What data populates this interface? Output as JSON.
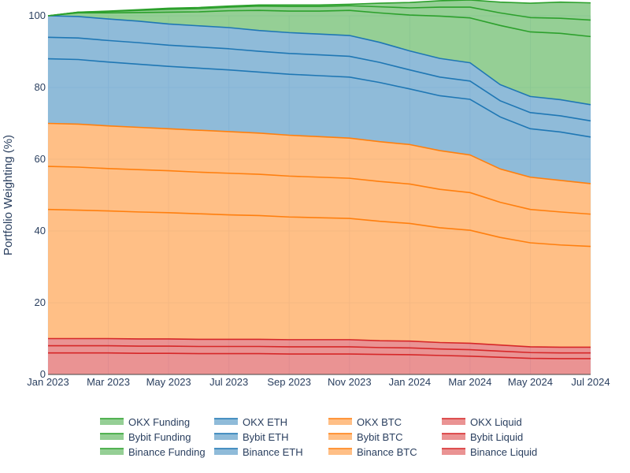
{
  "chart_data": {
    "type": "area",
    "stacked": true,
    "ylabel": "Portfolio Weighting (%)",
    "xlabel": "",
    "ylim": [
      0,
      100
    ],
    "y_ticks": [
      0,
      20,
      40,
      60,
      80,
      100
    ],
    "x_ticks": [
      "Jan 2023",
      "Mar 2023",
      "May 2023",
      "Jul 2023",
      "Sep 2023",
      "Nov 2023",
      "Jan 2024",
      "Mar 2024",
      "May 2024",
      "Jul 2024"
    ],
    "x": [
      "2023-01",
      "2023-02",
      "2023-03",
      "2023-04",
      "2023-05",
      "2023-06",
      "2023-07",
      "2023-08",
      "2023-09",
      "2023-10",
      "2023-11",
      "2023-12",
      "2024-01",
      "2024-02",
      "2024-03",
      "2024-04",
      "2024-05",
      "2024-06",
      "2024-07"
    ],
    "grid": true,
    "legend_position": "bottom",
    "series": [
      {
        "name": "Binance Liquid",
        "color": "#d62728",
        "values": [
          6.0,
          6.0,
          6.0,
          5.9,
          5.9,
          5.8,
          5.8,
          5.8,
          5.7,
          5.7,
          5.7,
          5.6,
          5.5,
          5.3,
          5.1,
          4.8,
          4.5,
          4.4,
          4.4
        ]
      },
      {
        "name": "Bybit Liquid",
        "color": "#d62728",
        "values": [
          2.0,
          2.0,
          2.0,
          2.0,
          2.0,
          2.0,
          2.0,
          2.0,
          2.0,
          2.0,
          2.0,
          1.9,
          1.9,
          1.8,
          1.8,
          1.7,
          1.6,
          1.6,
          1.6
        ]
      },
      {
        "name": "OKX Liquid",
        "color": "#d62728",
        "values": [
          2.0,
          2.0,
          2.0,
          2.0,
          2.0,
          2.0,
          2.0,
          2.0,
          2.0,
          2.0,
          2.0,
          1.9,
          1.9,
          1.8,
          1.8,
          1.7,
          1.6,
          1.6,
          1.6
        ]
      },
      {
        "name": "Binance BTC",
        "color": "#ff7f0e",
        "values": [
          36.0,
          35.8,
          35.6,
          35.4,
          35.2,
          35.0,
          34.7,
          34.5,
          34.2,
          34.0,
          33.8,
          33.3,
          32.8,
          32.0,
          31.5,
          30.0,
          29.0,
          28.5,
          28.1
        ]
      },
      {
        "name": "Bybit BTC",
        "color": "#ff7f0e",
        "values": [
          12.0,
          12.0,
          11.8,
          11.8,
          11.7,
          11.6,
          11.6,
          11.5,
          11.4,
          11.3,
          11.2,
          11.1,
          11.0,
          10.7,
          10.5,
          9.8,
          9.3,
          9.2,
          9.0
        ]
      },
      {
        "name": "OKX BTC",
        "color": "#ff7f0e",
        "values": [
          12.0,
          12.0,
          11.9,
          11.8,
          11.7,
          11.7,
          11.6,
          11.5,
          11.4,
          11.3,
          11.2,
          11.1,
          11.0,
          10.8,
          10.5,
          9.3,
          9.0,
          8.8,
          8.5
        ]
      },
      {
        "name": "Binance ETH",
        "color": "#1f77b4",
        "values": [
          18.0,
          18.0,
          17.8,
          17.6,
          17.4,
          17.3,
          17.2,
          17.0,
          17.0,
          17.0,
          17.0,
          16.5,
          15.5,
          15.3,
          15.5,
          14.5,
          13.5,
          13.5,
          13.0
        ]
      },
      {
        "name": "Bybit ETH",
        "color": "#1f77b4",
        "values": [
          6.0,
          6.0,
          6.0,
          6.0,
          5.9,
          5.9,
          5.9,
          5.8,
          5.8,
          5.8,
          5.8,
          5.6,
          5.3,
          5.2,
          5.1,
          4.5,
          4.5,
          4.5,
          4.5
        ]
      },
      {
        "name": "OKX ETH",
        "color": "#1f77b4",
        "values": [
          6.0,
          6.0,
          6.0,
          6.0,
          5.9,
          5.9,
          5.9,
          5.8,
          5.8,
          5.8,
          5.8,
          5.6,
          5.3,
          5.2,
          5.1,
          4.5,
          4.5,
          4.5,
          4.5
        ]
      },
      {
        "name": "Binance Funding",
        "color": "#2ca02c",
        "values": [
          0.0,
          1.0,
          1.7,
          2.4,
          3.3,
          3.9,
          4.7,
          5.6,
          6.0,
          6.4,
          7.0,
          8.2,
          10.0,
          11.8,
          12.5,
          16.5,
          18.0,
          18.5,
          19.0
        ]
      },
      {
        "name": "Bybit Funding",
        "color": "#2ca02c",
        "values": [
          0.0,
          0.2,
          0.4,
          0.6,
          0.8,
          0.9,
          1.0,
          1.2,
          1.3,
          1.3,
          1.3,
          1.7,
          2.0,
          2.5,
          3.0,
          3.5,
          4.0,
          4.2,
          4.6
        ]
      },
      {
        "name": "OKX Funding",
        "color": "#2ca02c",
        "values": [
          0.0,
          0.0,
          0.1,
          0.2,
          0.3,
          0.3,
          0.3,
          0.3,
          0.4,
          0.4,
          0.4,
          1.0,
          1.5,
          1.8,
          2.0,
          3.0,
          4.0,
          4.5,
          4.8
        ]
      }
    ]
  },
  "legend": [
    {
      "label": "OKX Funding",
      "color": "#2ca02c"
    },
    {
      "label": "OKX ETH",
      "color": "#1f77b4"
    },
    {
      "label": "OKX BTC",
      "color": "#ff7f0e"
    },
    {
      "label": "OKX Liquid",
      "color": "#d62728"
    },
    {
      "label": "Bybit Funding",
      "color": "#2ca02c"
    },
    {
      "label": "Bybit ETH",
      "color": "#1f77b4"
    },
    {
      "label": "Bybit BTC",
      "color": "#ff7f0e"
    },
    {
      "label": "Bybit Liquid",
      "color": "#d62728"
    },
    {
      "label": "Binance Funding",
      "color": "#2ca02c"
    },
    {
      "label": "Binance ETH",
      "color": "#1f77b4"
    },
    {
      "label": "Binance BTC",
      "color": "#ff7f0e"
    },
    {
      "label": "Binance Liquid",
      "color": "#d62728"
    }
  ]
}
